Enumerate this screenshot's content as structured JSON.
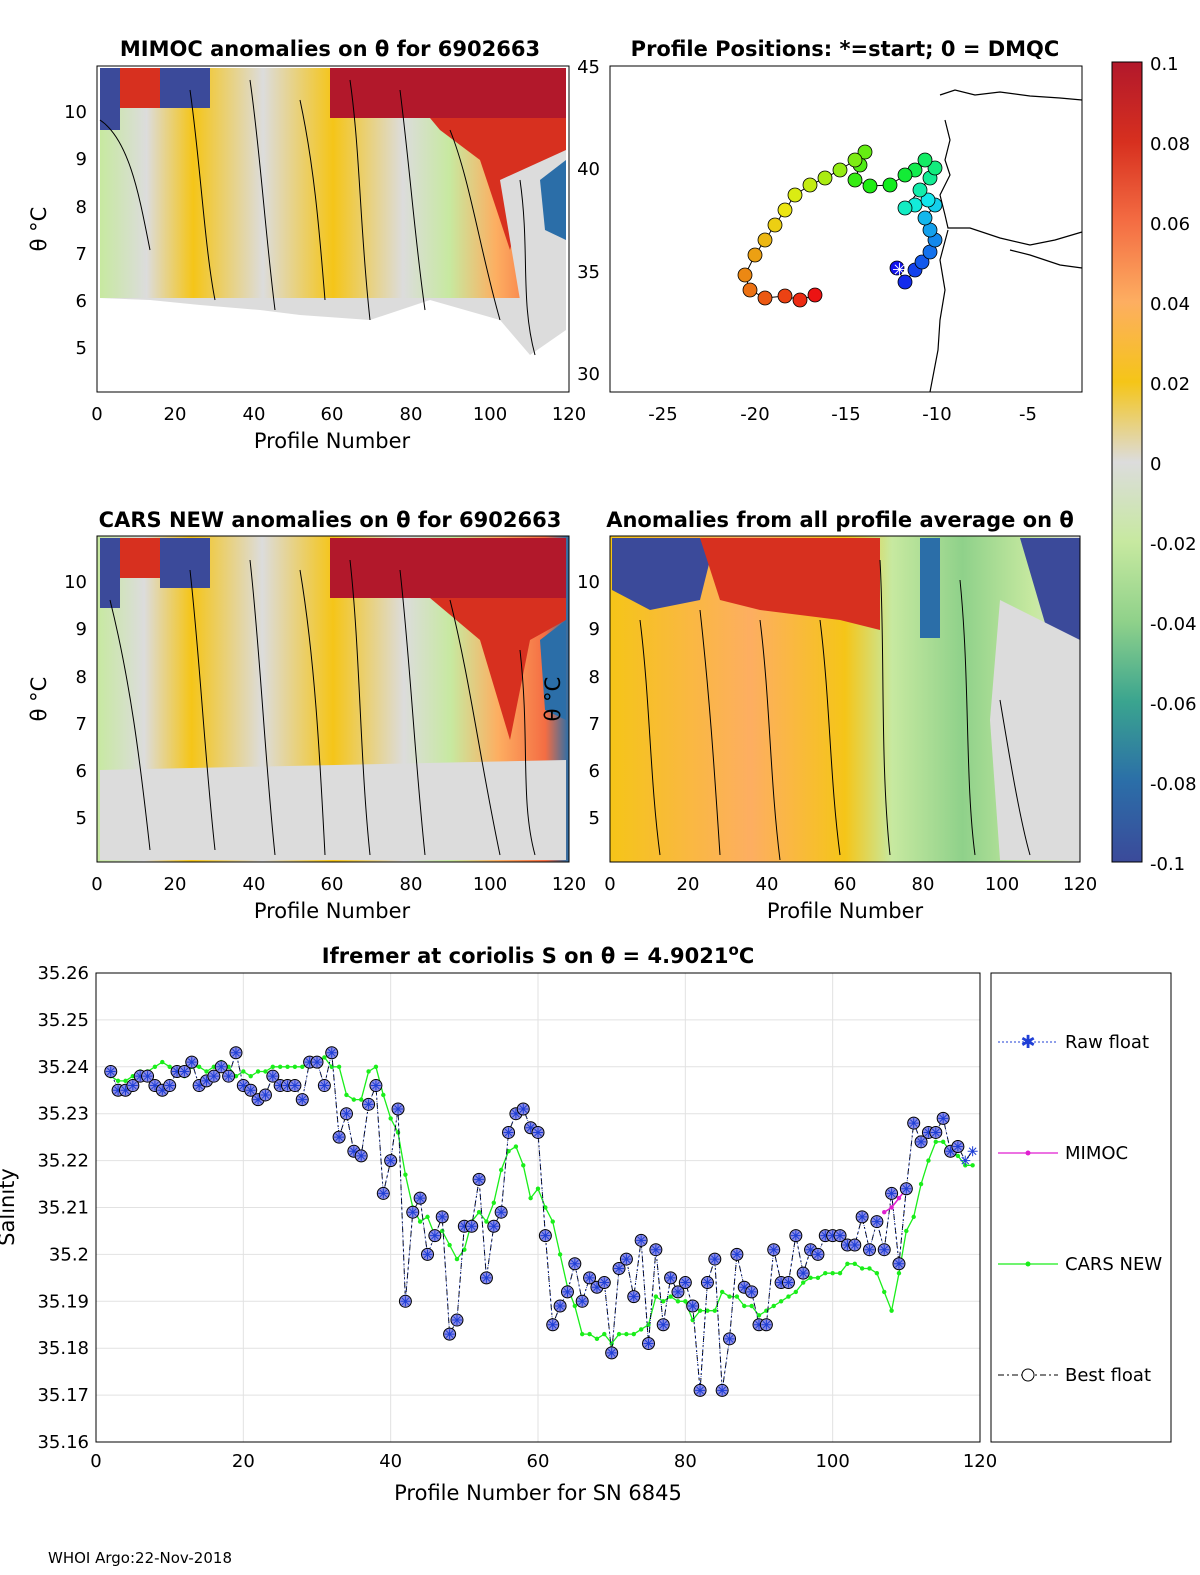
{
  "panels": {
    "mimoc": {
      "title": "MIMOC anomalies on θ  for 6902663",
      "xlabel": "Profile Number",
      "ylabel": "θ °C",
      "xticks": [
        "0",
        "20",
        "40",
        "60",
        "80",
        "100",
        "120"
      ],
      "yticks": [
        "5",
        "6",
        "7",
        "8",
        "9",
        "10"
      ]
    },
    "positions": {
      "title": "Profile Positions: *=start; 0 = DMQC",
      "xticks": [
        "-25",
        "-20",
        "-15",
        "-10",
        "-5"
      ],
      "yticks": [
        "30",
        "35",
        "40",
        "45"
      ]
    },
    "cars": {
      "title": "CARS NEW anomalies on θ for 6902663",
      "xlabel": "Profile Number",
      "ylabel": "θ °C",
      "xticks": [
        "0",
        "20",
        "40",
        "60",
        "80",
        "100",
        "120"
      ],
      "yticks": [
        "5",
        "6",
        "7",
        "8",
        "9",
        "10"
      ]
    },
    "avg": {
      "title": "Anomalies from all profile average on θ",
      "xlabel": "Profile Number",
      "ylabel": "θ °C",
      "xticks": [
        "0",
        "20",
        "40",
        "60",
        "80",
        "100",
        "120"
      ],
      "yticks": [
        "5",
        "6",
        "7",
        "8",
        "9",
        "10"
      ]
    }
  },
  "colorbar": {
    "ticks": [
      "0.1",
      "0.08",
      "0.06",
      "0.04",
      "0.02",
      "0",
      "-0.02",
      "-0.04",
      "-0.06",
      "-0.08",
      "-0.1"
    ],
    "colors": [
      "#b2182b",
      "#d7301f",
      "#f46d43",
      "#fdae61",
      "#f5c518",
      "#dcdcdc",
      "#c7e9a0",
      "#8fd18a",
      "#3aa48f",
      "#2b6ea8",
      "#3b4a9a"
    ]
  },
  "chart_data": {
    "type": "line",
    "title": "Ifremer at coriolis S on θ = 4.9021°C",
    "title_main": "Ifremer at coriolis S on θ = 4.9021",
    "title_unit": "o",
    "title_unit2": "C",
    "xlabel": "Profile Number for SN 6845",
    "ylabel": "Salinity",
    "xlim": [
      0,
      120
    ],
    "ylim": [
      35.16,
      35.26
    ],
    "xticks": [
      "0",
      "20",
      "40",
      "60",
      "80",
      "100",
      "120"
    ],
    "yticks": [
      "35.16",
      "35.17",
      "35.18",
      "35.19",
      "35.2",
      "35.21",
      "35.22",
      "35.23",
      "35.24",
      "35.25",
      "35.26"
    ],
    "legend": [
      "Raw float",
      "MIMOC",
      "CARS NEW",
      "Best float"
    ],
    "legend_position": "outside-right",
    "series": [
      {
        "name": "Raw float / Best float",
        "x": [
          2,
          3,
          4,
          5,
          6,
          7,
          8,
          9,
          10,
          11,
          12,
          13,
          14,
          15,
          16,
          17,
          18,
          19,
          20,
          21,
          22,
          23,
          24,
          25,
          26,
          27,
          28,
          29,
          30,
          31,
          32,
          33,
          34,
          35,
          36,
          37,
          38,
          39,
          40,
          41,
          42,
          43,
          44,
          45,
          46,
          47,
          48,
          49,
          50,
          51,
          52,
          53,
          54,
          55,
          56,
          57,
          58,
          59,
          60,
          61,
          62,
          63,
          64,
          65,
          66,
          67,
          68,
          69,
          70,
          71,
          72,
          73,
          74,
          75,
          76,
          77,
          78,
          79,
          80,
          81,
          82,
          83,
          84,
          85,
          86,
          87,
          88,
          89,
          90,
          91,
          92,
          93,
          94,
          95,
          96,
          97,
          98,
          99,
          100,
          101,
          102,
          103,
          104,
          105,
          106,
          107,
          108,
          109,
          110,
          111,
          112,
          113,
          114,
          115,
          116,
          117,
          118,
          119
        ],
        "values": [
          35.239,
          35.235,
          35.235,
          35.236,
          35.238,
          35.238,
          35.236,
          35.235,
          35.236,
          35.239,
          35.239,
          35.241,
          35.236,
          35.237,
          35.238,
          35.24,
          35.238,
          35.243,
          35.236,
          35.235,
          35.233,
          35.234,
          35.238,
          35.236,
          35.236,
          35.236,
          35.233,
          35.241,
          35.241,
          35.236,
          35.243,
          35.225,
          35.23,
          35.222,
          35.221,
          35.232,
          35.236,
          35.213,
          35.22,
          35.231,
          35.19,
          35.209,
          35.212,
          35.2,
          35.204,
          35.208,
          35.183,
          35.186,
          35.206,
          35.206,
          35.216,
          35.195,
          35.206,
          35.209,
          35.226,
          35.23,
          35.231,
          35.227,
          35.226,
          35.204,
          35.185,
          35.189,
          35.192,
          35.198,
          35.19,
          35.195,
          35.193,
          35.194,
          35.179,
          35.197,
          35.199,
          35.191,
          35.203,
          35.181,
          35.201,
          35.185,
          35.195,
          35.192,
          35.194,
          35.189,
          35.171,
          35.194,
          35.199,
          35.171,
          35.182,
          35.2,
          35.193,
          35.192,
          35.185,
          35.185,
          35.201,
          35.194,
          35.194,
          35.204,
          35.196,
          35.201,
          35.2,
          35.204,
          35.204,
          35.204,
          35.202,
          35.202,
          35.208,
          35.201,
          35.207,
          35.201,
          35.213,
          35.198,
          35.214,
          35.228,
          35.224,
          35.226,
          35.226,
          35.229,
          35.222,
          35.223,
          35.22,
          35.222
        ]
      },
      {
        "name": "MIMOC",
        "x": [
          107,
          108,
          109,
          110
        ],
        "values": [
          35.209,
          35.21,
          35.212,
          35.214
        ]
      },
      {
        "name": "CARS NEW",
        "x": [
          2,
          3,
          4,
          5,
          6,
          7,
          8,
          9,
          10,
          11,
          12,
          13,
          14,
          15,
          16,
          17,
          18,
          19,
          20,
          21,
          22,
          23,
          24,
          25,
          26,
          27,
          28,
          29,
          30,
          31,
          32,
          33,
          34,
          35,
          36,
          37,
          38,
          39,
          40,
          41,
          42,
          43,
          44,
          45,
          46,
          47,
          48,
          49,
          50,
          51,
          52,
          53,
          54,
          55,
          56,
          57,
          58,
          59,
          60,
          61,
          62,
          63,
          64,
          65,
          66,
          67,
          68,
          69,
          70,
          71,
          72,
          73,
          74,
          75,
          76,
          77,
          78,
          79,
          80,
          81,
          82,
          83,
          84,
          85,
          86,
          87,
          88,
          89,
          90,
          91,
          92,
          93,
          94,
          95,
          96,
          97,
          98,
          99,
          100,
          101,
          102,
          103,
          104,
          105,
          106,
          107,
          108,
          109,
          110,
          111,
          112,
          113,
          114,
          115,
          116,
          117,
          118,
          119
        ],
        "values": [
          35.238,
          35.237,
          35.237,
          35.238,
          35.239,
          35.239,
          35.24,
          35.241,
          35.24,
          35.239,
          35.238,
          35.24,
          35.24,
          35.239,
          35.24,
          35.241,
          35.24,
          35.238,
          35.239,
          35.238,
          35.239,
          35.239,
          35.24,
          35.24,
          35.24,
          35.24,
          35.24,
          35.241,
          35.241,
          35.242,
          35.24,
          35.24,
          35.234,
          35.233,
          35.233,
          35.239,
          35.24,
          35.234,
          35.229,
          35.226,
          35.217,
          35.21,
          35.207,
          35.208,
          35.204,
          35.205,
          35.202,
          35.199,
          35.201,
          35.207,
          35.209,
          35.207,
          35.211,
          35.218,
          35.222,
          35.223,
          35.219,
          35.212,
          35.214,
          35.21,
          35.207,
          35.2,
          35.193,
          35.189,
          35.183,
          35.183,
          35.182,
          35.183,
          35.181,
          35.183,
          35.183,
          35.183,
          35.184,
          35.185,
          35.191,
          35.19,
          35.191,
          35.19,
          35.19,
          35.186,
          35.188,
          35.188,
          35.188,
          35.192,
          35.191,
          35.191,
          35.189,
          35.189,
          35.187,
          35.188,
          35.189,
          35.19,
          35.191,
          35.192,
          35.194,
          35.195,
          35.195,
          35.196,
          35.196,
          35.196,
          35.198,
          35.198,
          35.197,
          35.197,
          35.196,
          35.192,
          35.188,
          35.196,
          35.205,
          35.208,
          35.215,
          35.22,
          35.224,
          35.224,
          35.222,
          35.221,
          35.219,
          35.219
        ]
      }
    ]
  },
  "footer": "WHOI Argo:22-Nov-2018"
}
